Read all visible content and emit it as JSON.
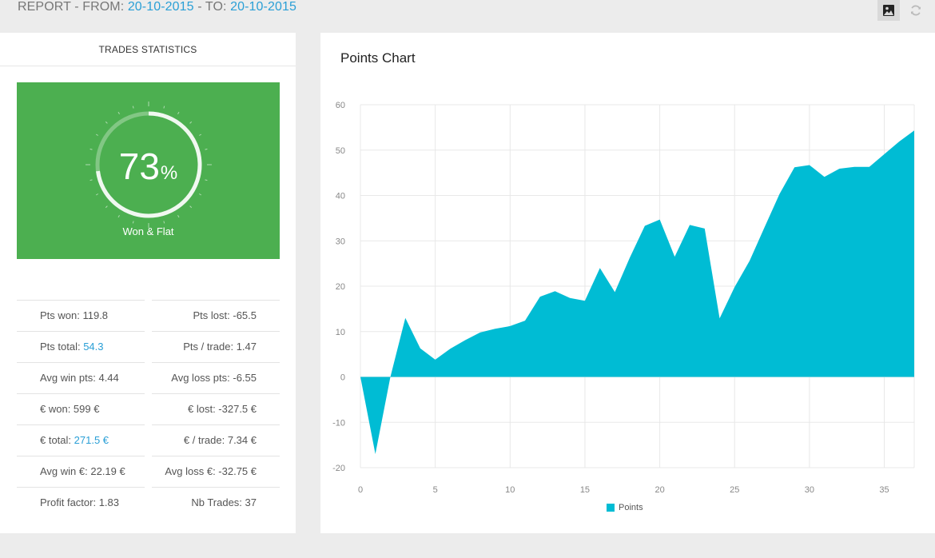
{
  "header": {
    "prefix": "REPORT - FROM: ",
    "from_date": "20-10-2015",
    "mid": " - TO: ",
    "to_date": "20-10-2015",
    "buttons": [
      {
        "icon": "image-icon"
      },
      {
        "icon": "refresh-icon"
      }
    ]
  },
  "stats_panel": {
    "title": "TRADES STATISTICS",
    "gauge": {
      "value": "73",
      "unit": "%",
      "fraction": 0.73,
      "label": "Won & Flat"
    },
    "rows": [
      {
        "left": {
          "label": "Pts won: ",
          "value": "119.8",
          "highlight": false
        },
        "right": {
          "label": "Pts lost: ",
          "value": "-65.5",
          "highlight": false
        }
      },
      {
        "left": {
          "label": "Pts total: ",
          "value": "54.3",
          "highlight": true
        },
        "right": {
          "label": "Pts / trade: ",
          "value": "1.47",
          "highlight": false
        }
      },
      {
        "left": {
          "label": "Avg win pts: ",
          "value": "4.44",
          "highlight": false
        },
        "right": {
          "label": "Avg loss pts: ",
          "value": "-6.55",
          "highlight": false
        }
      },
      {
        "left": {
          "label": "€ won: ",
          "value": "599 €",
          "highlight": false
        },
        "right": {
          "label": "€ lost: ",
          "value": "-327.5 €",
          "highlight": false
        }
      },
      {
        "left": {
          "label": "€ total: ",
          "value": "271.5 €",
          "highlight": true
        },
        "right": {
          "label": "€ / trade: ",
          "value": "7.34 €",
          "highlight": false
        }
      },
      {
        "left": {
          "label": "Avg win €: ",
          "value": "22.19 €",
          "highlight": false
        },
        "right": {
          "label": "Avg loss €: ",
          "value": "-32.75 €",
          "highlight": false
        }
      },
      {
        "left": {
          "label": "Profit factor: ",
          "value": "1.83",
          "highlight": false
        },
        "right": {
          "label": "Nb Trades: ",
          "value": "37",
          "highlight": false
        }
      }
    ]
  },
  "colors": {
    "accent": "#2a9fd6",
    "gauge_bg": "#4caf50",
    "series": "#00bcd4"
  },
  "chart_data": {
    "type": "area",
    "title": "Points Chart",
    "xlabel": "",
    "ylabel": "",
    "xlim": [
      0,
      37
    ],
    "ylim": [
      -20,
      60
    ],
    "x_ticks": [
      0,
      5,
      10,
      15,
      20,
      25,
      30,
      35
    ],
    "y_ticks": [
      60,
      50,
      40,
      30,
      20,
      10,
      0,
      -10,
      -20
    ],
    "grid": true,
    "legend_position": "bottom-center",
    "series": [
      {
        "name": "Points",
        "color": "#00bcd4",
        "x": [
          0,
          1,
          2,
          3,
          4,
          5,
          6,
          7,
          8,
          9,
          10,
          11,
          12,
          13,
          14,
          15,
          16,
          17,
          18,
          19,
          20,
          21,
          22,
          23,
          24,
          25,
          26,
          27,
          28,
          29,
          30,
          31,
          32,
          33,
          34,
          35,
          36,
          37
        ],
        "values": [
          0,
          -17,
          0,
          13,
          6.3,
          3.8,
          6.2,
          8.1,
          9.8,
          10.6,
          11.2,
          12.4,
          17.7,
          18.9,
          17.4,
          16.8,
          24,
          18.7,
          26.3,
          33.3,
          34.7,
          26.5,
          33.5,
          32.7,
          12.9,
          19.8,
          25.6,
          33,
          40.3,
          46.2,
          46.7,
          44.1,
          45.9,
          46.3,
          46.3,
          49.1,
          51.9,
          54.3
        ]
      }
    ]
  }
}
